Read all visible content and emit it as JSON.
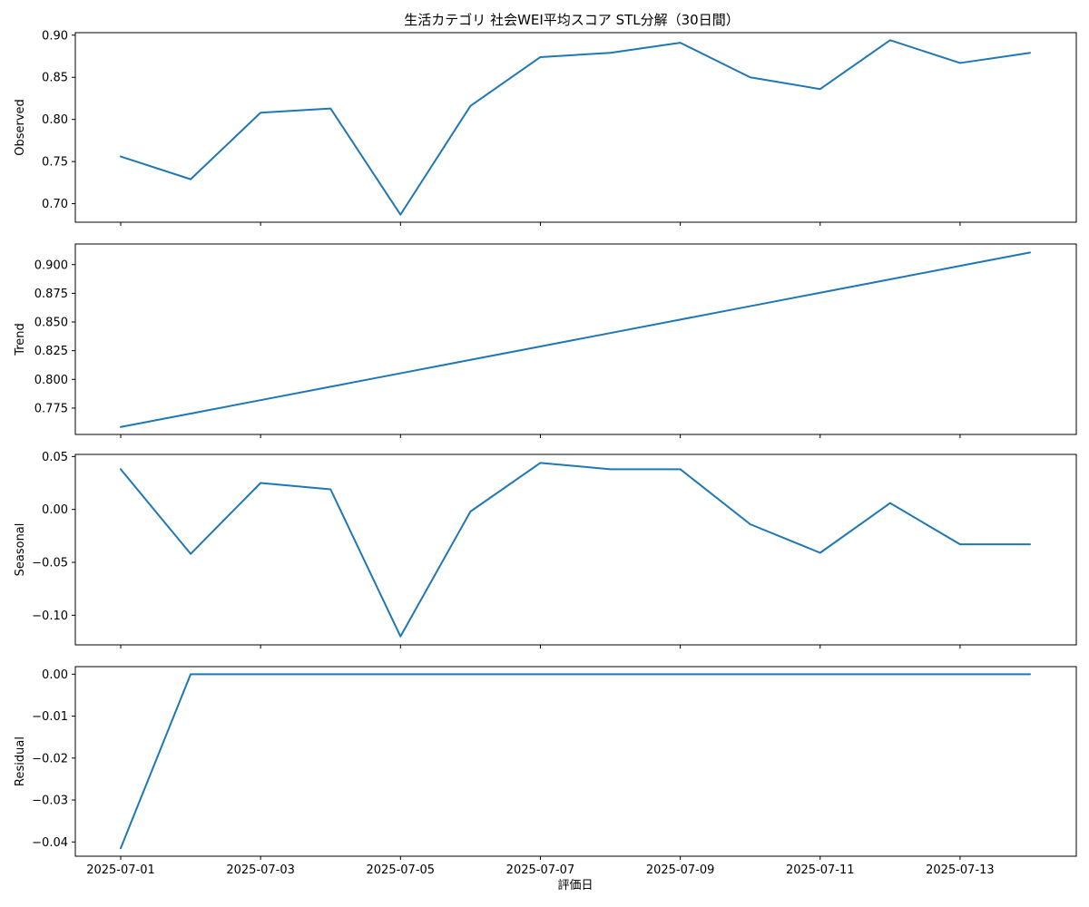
{
  "chart_data": {
    "type": "line",
    "title": "生活カテゴリ 社会WEI平均スコア STL分解（30日間）",
    "xlabel": "評価日",
    "color": "#1f77b4",
    "x": [
      "2025-07-01",
      "2025-07-02",
      "2025-07-03",
      "2025-07-04",
      "2025-07-05",
      "2025-07-06",
      "2025-07-07",
      "2025-07-08",
      "2025-07-09",
      "2025-07-10",
      "2025-07-11",
      "2025-07-12",
      "2025-07-13",
      "2025-07-14"
    ],
    "x_tick_labels": [
      "2025-07-01",
      "2025-07-03",
      "2025-07-05",
      "2025-07-07",
      "2025-07-09",
      "2025-07-11",
      "2025-07-13"
    ],
    "panels": [
      {
        "ylabel": "Observed",
        "ylim": [
          0.678,
          0.903
        ],
        "yticks": [
          0.9,
          0.85,
          0.8,
          0.75,
          0.7
        ],
        "ytick_labels": [
          "0.90",
          "0.85",
          "0.80",
          "0.75",
          "0.70"
        ],
        "values": [
          0.756,
          0.729,
          0.808,
          0.813,
          0.687,
          0.816,
          0.874,
          0.879,
          0.891,
          0.85,
          0.836,
          0.894,
          0.867,
          0.879
        ]
      },
      {
        "ylabel": "Trend",
        "ylim": [
          0.752,
          0.918
        ],
        "yticks": [
          0.9,
          0.875,
          0.85,
          0.825,
          0.8,
          0.775
        ],
        "ytick_labels": [
          "0.900",
          "0.875",
          "0.850",
          "0.825",
          "0.800",
          "0.775"
        ],
        "values": [
          0.7585,
          0.7702,
          0.7819,
          0.7936,
          0.8053,
          0.817,
          0.8287,
          0.8404,
          0.8521,
          0.8638,
          0.8755,
          0.8872,
          0.8989,
          0.9106
        ]
      },
      {
        "ylabel": "Seasonal",
        "ylim": [
          -0.128,
          0.052
        ],
        "yticks": [
          0.05,
          0.0,
          -0.05,
          -0.1
        ],
        "ytick_labels": [
          "0.05",
          "0.00",
          "−0.05",
          "−0.10"
        ],
        "values": [
          0.038,
          -0.042,
          0.025,
          0.019,
          -0.12,
          -0.002,
          0.044,
          0.038,
          0.038,
          -0.014,
          -0.041,
          0.006,
          -0.033,
          -0.033
        ]
      },
      {
        "ylabel": "Residual",
        "ylim": [
          -0.0434,
          0.0018
        ],
        "yticks": [
          0.0,
          -0.01,
          -0.02,
          -0.03,
          -0.04
        ],
        "ytick_labels": [
          "0.00",
          "−0.01",
          "−0.02",
          "−0.03",
          "−0.04"
        ],
        "values": [
          -0.0415,
          0,
          0,
          0,
          0,
          0,
          0,
          0,
          0,
          0,
          0,
          0,
          0,
          0
        ]
      }
    ]
  }
}
